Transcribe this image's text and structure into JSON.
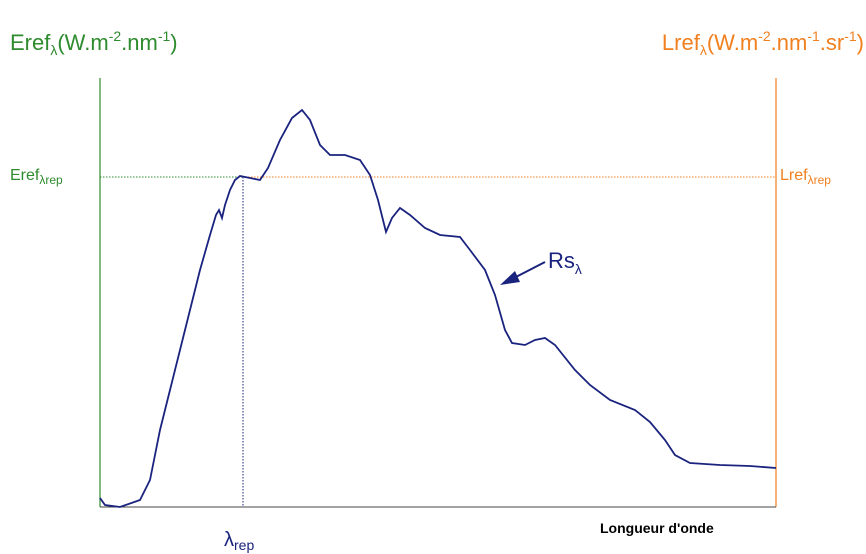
{
  "left_axis_label": {
    "name": "Eref",
    "sub": "λ",
    "unit_a": "(W.m",
    "exp_a": "-2",
    "unit_b": ".nm",
    "exp_b": "-1",
    "unit_c": ")"
  },
  "right_axis_label": {
    "name": "Lref",
    "sub": "λ",
    "unit_a": "(W.m",
    "exp_a": "-2",
    "unit_b": ".nm",
    "exp_b": "-1",
    "unit_c": ".sr",
    "exp_c": "-1",
    "unit_d": ")"
  },
  "left_marker": {
    "name": "Eref",
    "sub": "λrep"
  },
  "right_marker": {
    "name": "Lref",
    "sub": "λrep"
  },
  "curve_label": {
    "name": "Rs",
    "sub": "λ"
  },
  "x_marker": {
    "name": "λ",
    "sub": "rep"
  },
  "x_axis_label": "Longueur d'onde"
}
